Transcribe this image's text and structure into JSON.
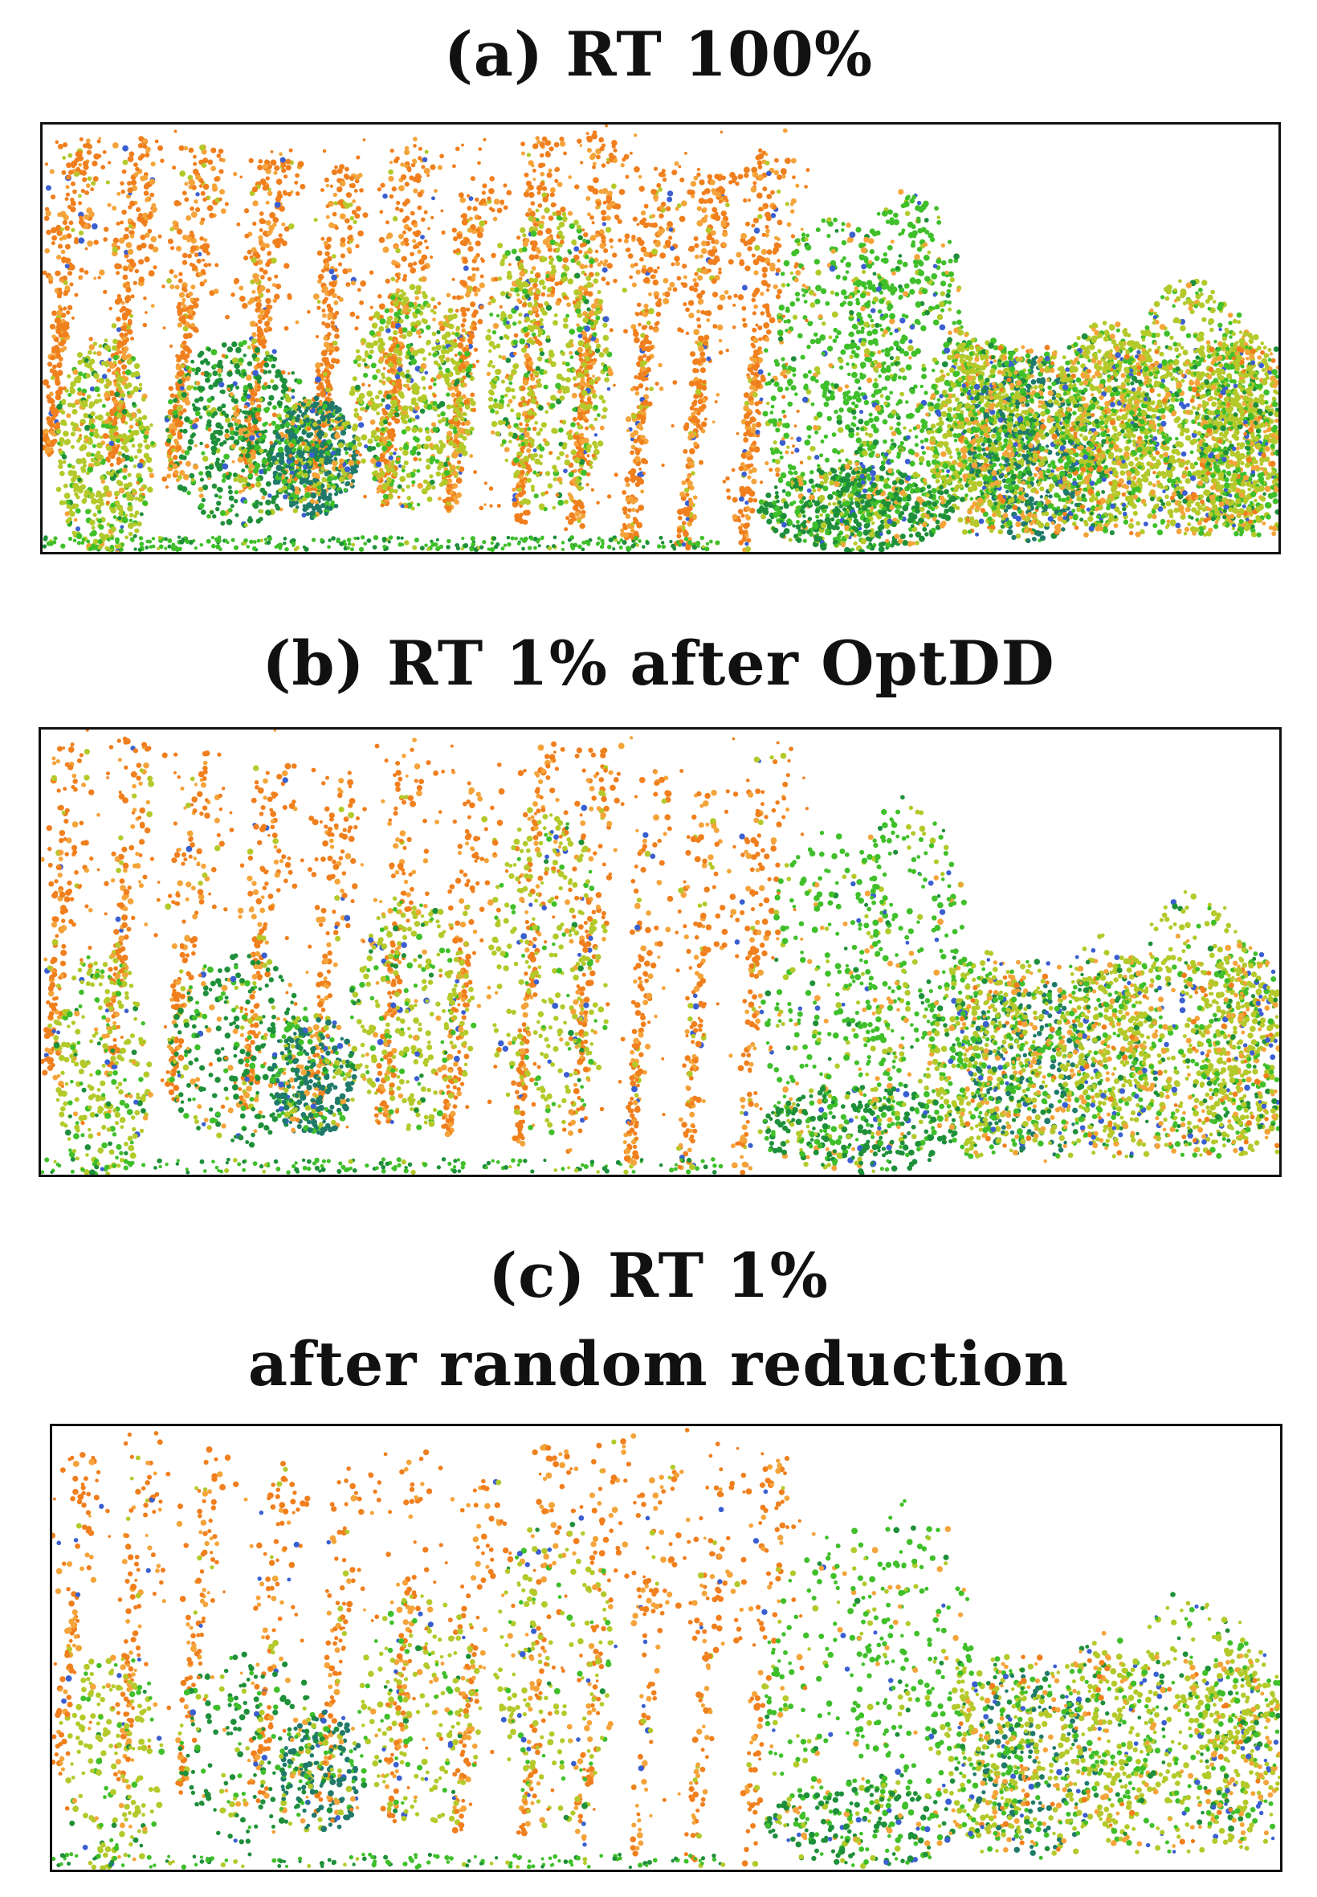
{
  "figure": {
    "panels": [
      {
        "id": "a",
        "title_lines": [
          "(a) RT 100%"
        ],
        "density": 1.0,
        "blue_share": 0.0
      },
      {
        "id": "b",
        "title_lines": [
          "(b) RT 1% after OptDD"
        ],
        "density": 0.55,
        "blue_share": 0.08
      },
      {
        "id": "c",
        "title_lines": [
          "(c) RT 1%",
          "after random reduction"
        ],
        "density": 0.38,
        "blue_share": 0.1
      }
    ],
    "colors": {
      "orange": "#f07f1e",
      "light_orange": "#f4a43a",
      "yellow_green": "#b4c92a",
      "green": "#3fbf2a",
      "dark_green": "#1e8f3a",
      "teal": "#1f7a6a",
      "blue": "#3a5fd0",
      "frame": "#111111",
      "background": "#ffffff"
    }
  }
}
